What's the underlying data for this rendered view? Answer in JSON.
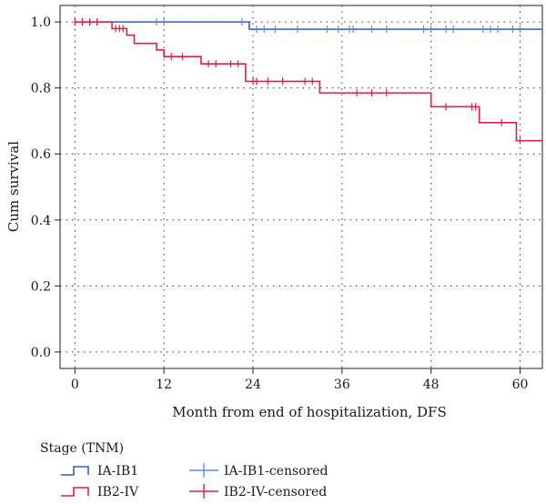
{
  "chart_data": {
    "type": "line",
    "subtype": "kaplan-meier",
    "xlabel": "Month from end of hospitalization, DFS",
    "ylabel": "Cum survival",
    "xlim": [
      -2,
      63
    ],
    "ylim": [
      -0.05,
      1.05
    ],
    "xticks": [
      0,
      12,
      24,
      36,
      48,
      60
    ],
    "xtick_labels": [
      "0",
      "12",
      "24",
      "36",
      "48",
      "60"
    ],
    "yticks": [
      0.0,
      0.2,
      0.4,
      0.6,
      0.8,
      1.0
    ],
    "ytick_labels": [
      "0.0",
      "0.2",
      "0.4",
      "0.6",
      "0.8",
      "1.0"
    ],
    "grid": "dotted",
    "legend": {
      "title": "Stage (TNM)",
      "entries": [
        {
          "label": "IA-IB1",
          "kind": "step",
          "color": "#3a5bbf"
        },
        {
          "label": "IB2-IV",
          "kind": "step",
          "color": "#e02040"
        },
        {
          "label": "IA-IB1-censored",
          "kind": "censor",
          "color": "#5b8fe0"
        },
        {
          "label": "IB2-IV-censored",
          "kind": "censor",
          "color": "#e02040"
        }
      ]
    },
    "series": [
      {
        "name": "IA-IB1",
        "color": "#3a5bbf",
        "censor_color": "#5b8fe0",
        "steps": [
          [
            0,
            1.0
          ],
          [
            23.5,
            0.978
          ],
          [
            63,
            0.978
          ]
        ],
        "censored": [
          [
            0,
            1.0
          ],
          [
            1,
            1.0
          ],
          [
            2,
            1.0
          ],
          [
            3,
            1.0
          ],
          [
            11,
            1.0
          ],
          [
            12,
            1.0
          ],
          [
            22.5,
            1.0
          ],
          [
            24.5,
            0.978
          ],
          [
            25.5,
            0.978
          ],
          [
            27,
            0.978
          ],
          [
            30,
            0.978
          ],
          [
            34,
            0.978
          ],
          [
            35.5,
            0.978
          ],
          [
            37,
            0.978
          ],
          [
            37.5,
            0.978
          ],
          [
            40,
            0.978
          ],
          [
            42,
            0.978
          ],
          [
            47,
            0.978
          ],
          [
            48,
            0.978
          ],
          [
            50,
            0.978
          ],
          [
            51,
            0.978
          ],
          [
            55,
            0.978
          ],
          [
            56,
            0.978
          ],
          [
            57,
            0.978
          ],
          [
            59,
            0.978
          ],
          [
            60,
            0.978
          ]
        ]
      },
      {
        "name": "IB2-IV",
        "color": "#e02040",
        "censor_color": "#e02040",
        "steps": [
          [
            0,
            1.0
          ],
          [
            5,
            0.98
          ],
          [
            7,
            0.96
          ],
          [
            8,
            0.935
          ],
          [
            11,
            0.915
          ],
          [
            12,
            0.895
          ],
          [
            17,
            0.873
          ],
          [
            23,
            0.82
          ],
          [
            33,
            0.785
          ],
          [
            48,
            0.743
          ],
          [
            54.5,
            0.695
          ],
          [
            59.5,
            0.64
          ],
          [
            63,
            0.64
          ]
        ],
        "censored": [
          [
            0,
            1.0
          ],
          [
            1,
            1.0
          ],
          [
            2,
            1.0
          ],
          [
            3,
            1.0
          ],
          [
            5.5,
            0.98
          ],
          [
            6,
            0.98
          ],
          [
            6.5,
            0.98
          ],
          [
            13,
            0.895
          ],
          [
            14.5,
            0.895
          ],
          [
            18,
            0.873
          ],
          [
            19,
            0.873
          ],
          [
            21,
            0.873
          ],
          [
            22,
            0.873
          ],
          [
            24,
            0.82
          ],
          [
            24.5,
            0.82
          ],
          [
            26,
            0.82
          ],
          [
            28,
            0.82
          ],
          [
            31,
            0.82
          ],
          [
            32,
            0.82
          ],
          [
            38,
            0.785
          ],
          [
            40,
            0.785
          ],
          [
            42,
            0.785
          ],
          [
            50,
            0.743
          ],
          [
            53.5,
            0.743
          ],
          [
            54,
            0.743
          ],
          [
            57.5,
            0.695
          ],
          [
            60,
            0.64
          ]
        ]
      }
    ]
  }
}
